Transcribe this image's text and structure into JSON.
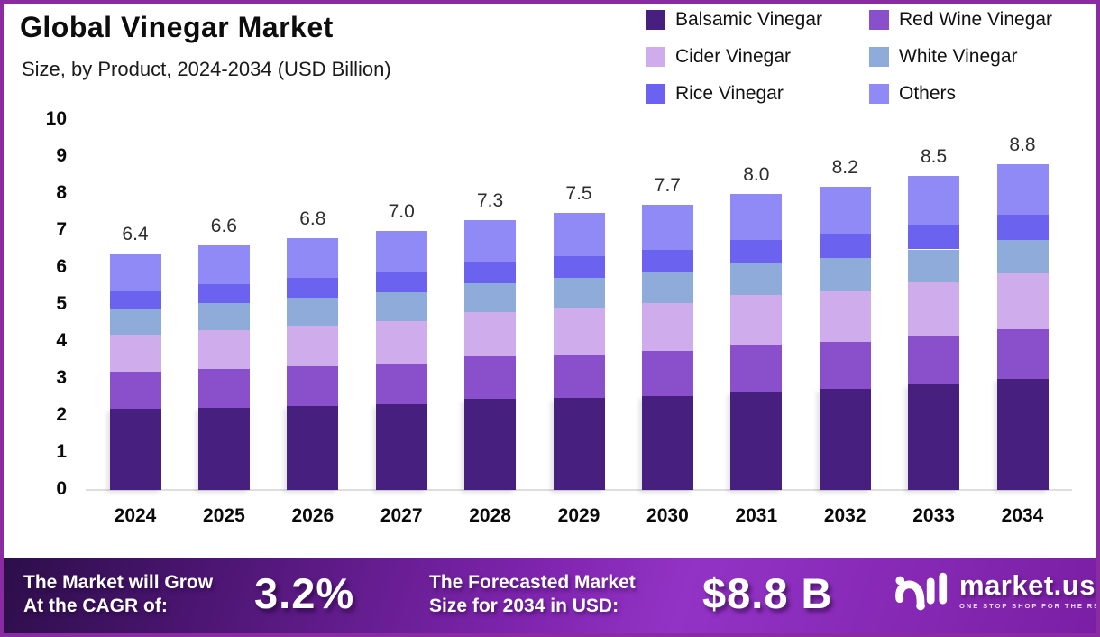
{
  "header": {
    "title": "Global Vinegar Market",
    "subtitle": "Size, by Product, 2024-2034 (USD Billion)"
  },
  "legend": [
    {
      "label": "Balsamic Vinegar",
      "color": "#47207f"
    },
    {
      "label": "Red Wine Vinegar",
      "color": "#8a4fcb"
    },
    {
      "label": "Cider Vinegar",
      "color": "#cfadec"
    },
    {
      "label": "White Vinegar",
      "color": "#8fabd9"
    },
    {
      "label": "Rice Vinegar",
      "color": "#6b63f0"
    },
    {
      "label": "Others",
      "color": "#8f8af5"
    }
  ],
  "chart_data": {
    "type": "bar",
    "stacked": true,
    "title": "Global Vinegar Market Size, by Product, 2024-2034 (USD Billion)",
    "categories": [
      "2024",
      "2025",
      "2026",
      "2027",
      "2028",
      "2029",
      "2030",
      "2031",
      "2032",
      "2033",
      "2034"
    ],
    "series": [
      {
        "name": "Balsamic Vinegar",
        "color": "#47207f",
        "values": [
          2.2,
          2.23,
          2.28,
          2.31,
          2.46,
          2.49,
          2.54,
          2.67,
          2.72,
          2.85,
          3.0
        ]
      },
      {
        "name": "Red Wine Vinegar",
        "color": "#8a4fcb",
        "values": [
          1.0,
          1.04,
          1.07,
          1.11,
          1.14,
          1.18,
          1.21,
          1.25,
          1.28,
          1.32,
          1.35
        ]
      },
      {
        "name": "Cider Vinegar",
        "color": "#cfadec",
        "values": [
          1.0,
          1.05,
          1.1,
          1.15,
          1.2,
          1.25,
          1.3,
          1.35,
          1.4,
          1.45,
          1.5
        ]
      },
      {
        "name": "White Vinegar",
        "color": "#8fabd9",
        "values": [
          0.7,
          0.72,
          0.74,
          0.76,
          0.78,
          0.8,
          0.82,
          0.84,
          0.86,
          0.88,
          0.9
        ]
      },
      {
        "name": "Rice Vinegar",
        "color": "#6b63f0",
        "values": [
          0.5,
          0.52,
          0.54,
          0.56,
          0.58,
          0.6,
          0.62,
          0.64,
          0.66,
          0.68,
          0.7
        ]
      },
      {
        "name": "Others",
        "color": "#8f8af5",
        "values": [
          1.0,
          1.04,
          1.07,
          1.11,
          1.14,
          1.18,
          1.21,
          1.25,
          1.28,
          1.32,
          1.35
        ]
      }
    ],
    "totals": [
      "6.4",
      "6.6",
      "6.8",
      "7.0",
      "7.3",
      "7.5",
      "7.7",
      "8.0",
      "8.2",
      "8.5",
      "8.8"
    ],
    "yticks": [
      "0",
      "1",
      "2",
      "3",
      "4",
      "5",
      "6",
      "7",
      "8",
      "9",
      "10"
    ],
    "ylim": [
      0,
      10
    ],
    "xlabel": "",
    "ylabel": "USD Billion",
    "grid": false,
    "legend_position": "top-right"
  },
  "footer": {
    "cagr_label": [
      "The Market will Grow",
      "At the CAGR of:"
    ],
    "cagr_value": "3.2%",
    "forecast_label": [
      "The Forecasted Market",
      "Size for 2034 in USD:"
    ],
    "forecast_value": "$8.8 B",
    "brand": "market.us",
    "tagline": "ONE STOP SHOP FOR THE REPORTS"
  },
  "colors": {
    "page_border": "#8b2ba2",
    "axis_line": "#dedede",
    "banner_dark": "#2d0e4a",
    "banner_bright": "#9333c6",
    "text": "#0d0d0d"
  }
}
